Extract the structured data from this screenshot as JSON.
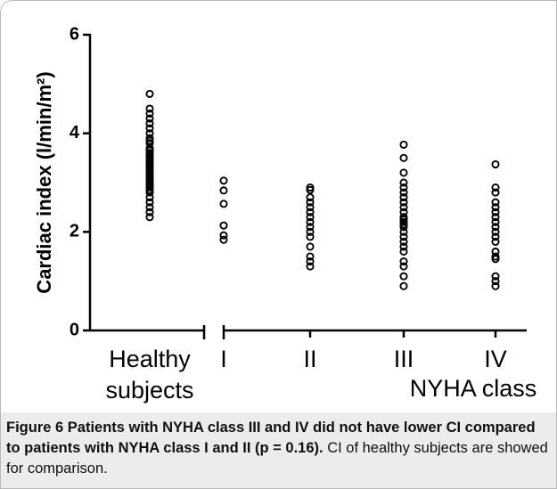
{
  "chart_data": {
    "type": "strip",
    "ylabel": "Cardiac index (l/min/m²)",
    "categories": [
      "Healthy subjects",
      "I",
      "II",
      "III",
      "IV"
    ],
    "group_label": "NYHA class",
    "values": [
      [
        4.8,
        4.5,
        4.4,
        4.3,
        4.2,
        4.1,
        4.0,
        3.9,
        3.85,
        3.8,
        3.7,
        3.65,
        3.6,
        3.55,
        3.5,
        3.45,
        3.4,
        3.35,
        3.3,
        3.25,
        3.2,
        3.15,
        3.1,
        3.05,
        3.0,
        2.95,
        2.9,
        2.85,
        2.8,
        2.7,
        2.6,
        2.5,
        2.4,
        2.3
      ],
      [
        3.04,
        2.84,
        2.57,
        2.13,
        1.93,
        1.84
      ],
      [
        2.9,
        2.85,
        2.7,
        2.6,
        2.5,
        2.4,
        2.3,
        2.2,
        2.1,
        2.0,
        1.9,
        1.7,
        1.5,
        1.4,
        1.3
      ],
      [
        3.77,
        3.5,
        3.2,
        3.0,
        2.9,
        2.8,
        2.7,
        2.6,
        2.5,
        2.4,
        2.3,
        2.25,
        2.2,
        2.15,
        2.1,
        2.0,
        1.9,
        1.8,
        1.7,
        1.6,
        1.4,
        1.3,
        1.1,
        0.9
      ],
      [
        3.37,
        2.9,
        2.8,
        2.6,
        2.5,
        2.4,
        2.3,
        2.2,
        2.1,
        2.0,
        1.9,
        1.8,
        1.6,
        1.5,
        1.45,
        1.1,
        1.0,
        0.9
      ]
    ],
    "color": "#000000",
    "ylim": [
      0,
      6
    ],
    "yticks": [
      0,
      2,
      4,
      6
    ]
  },
  "caption": {
    "title": "Figure 6 Patients with NYHA class III and IV did not have lower CI compared to patients with NYHA class I and II (p = 0.16).",
    "text": "CI of healthy subjects are showed for comparison."
  }
}
